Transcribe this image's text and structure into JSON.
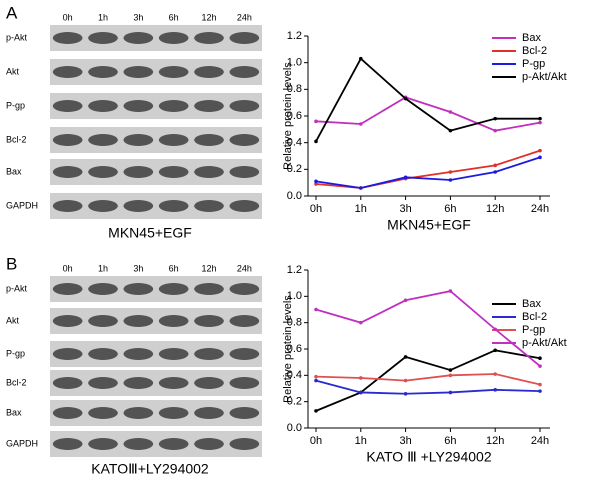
{
  "panels": [
    {
      "label": "A",
      "times": [
        "0h",
        "1h",
        "3h",
        "6h",
        "12h",
        "24h"
      ],
      "rows": [
        "p-Akt",
        "Akt",
        "P-gp",
        "Bcl-2",
        "Bax",
        "GAPDH"
      ],
      "caption": "MKN45+EGF"
    },
    {
      "label": "B",
      "times": [
        "0h",
        "1h",
        "3h",
        "6h",
        "12h",
        "24h"
      ],
      "rows": [
        "p-Akt",
        "Akt",
        "P-gp",
        "Bcl-2",
        "Bax",
        "GAPDH"
      ],
      "caption": "KATOⅢ+LY294002"
    }
  ],
  "chart_data": [
    {
      "type": "line",
      "ylabel": "Relative protein levels",
      "xlabel": "MKN45+EGF",
      "categories": [
        "0h",
        "1h",
        "3h",
        "6h",
        "12h",
        "24h"
      ],
      "ylim": [
        0,
        1.2
      ],
      "yticks": [
        {
          "value": 0,
          "label": "0.0"
        },
        0.2,
        0.4,
        0.6,
        0.8,
        {
          "value": 1,
          "label": "1.0"
        },
        1.2
      ],
      "series": [
        {
          "name": "Bax",
          "color": "#c02fc0",
          "values": [
            0.56,
            0.54,
            0.74,
            0.63,
            0.49,
            0.55
          ]
        },
        {
          "name": "Bcl-2",
          "color": "#e0302a",
          "values": [
            0.09,
            0.06,
            0.13,
            0.18,
            0.23,
            0.34
          ]
        },
        {
          "name": "P-gp",
          "color": "#1a1ae0",
          "values": [
            0.11,
            0.06,
            0.14,
            0.12,
            0.18,
            0.29
          ]
        },
        {
          "name": "p-Akt/Akt",
          "color": "#000000",
          "values": [
            0.41,
            1.03,
            0.73,
            0.49,
            0.58,
            0.58
          ]
        }
      ]
    },
    {
      "type": "line",
      "ylabel": "Relative protein levels",
      "xlabel": "KATO Ⅲ +LY294002",
      "categories": [
        "0h",
        "1h",
        "3h",
        "6h",
        "12h",
        "24h"
      ],
      "ylim": [
        0,
        1.2
      ],
      "yticks": [
        {
          "value": 0,
          "label": "0.0"
        },
        0.2,
        0.4,
        0.6,
        0.8,
        {
          "value": 1,
          "label": "1.0"
        },
        1.2
      ],
      "series": [
        {
          "name": "Bax",
          "color": "#000000",
          "values": [
            0.13,
            0.27,
            0.54,
            0.44,
            0.59,
            0.53
          ]
        },
        {
          "name": "Bcl-2",
          "color": "#2a2ad0",
          "values": [
            0.36,
            0.27,
            0.26,
            0.27,
            0.29,
            0.28
          ]
        },
        {
          "name": "P-gp",
          "color": "#e05050",
          "values": [
            0.39,
            0.38,
            0.36,
            0.4,
            0.41,
            0.33
          ]
        },
        {
          "name": "p-Akt/Akt",
          "color": "#c02fc0",
          "values": [
            0.9,
            0.8,
            0.97,
            1.04,
            0.75,
            0.47
          ]
        }
      ]
    }
  ]
}
